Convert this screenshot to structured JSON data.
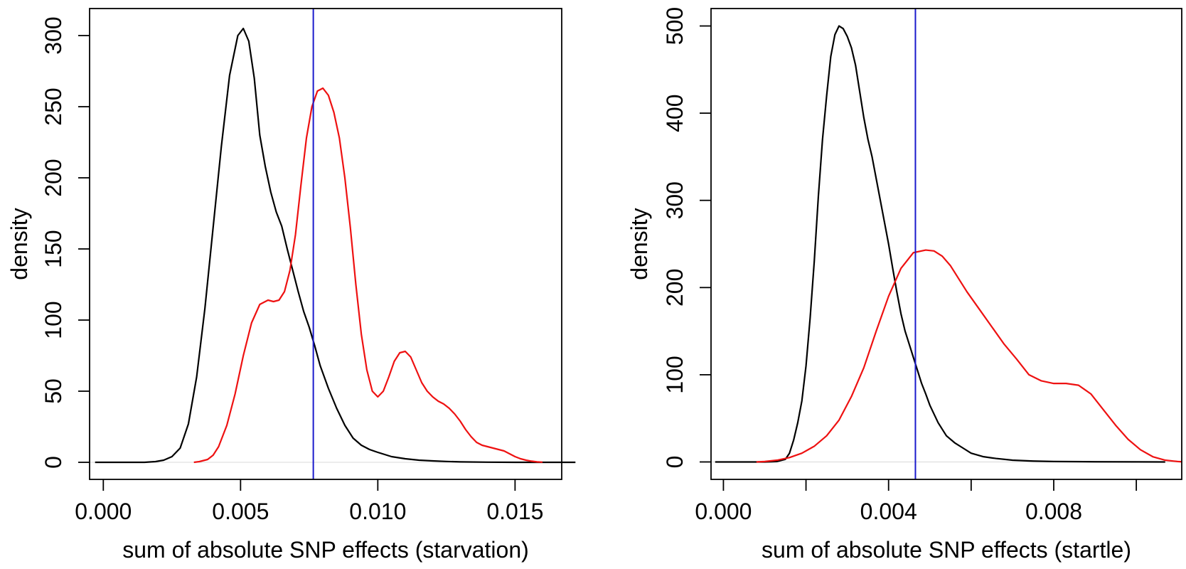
{
  "chart_data": [
    {
      "type": "line",
      "xlabel": "sum of absolute SNP effects (starvation)",
      "ylabel": "density",
      "xlim": [
        -0.0005,
        0.0167
      ],
      "ylim": [
        -12,
        319
      ],
      "xticks": [
        0.0,
        0.005,
        0.01,
        0.015
      ],
      "xtick_labels": [
        "0.000",
        "0.005",
        "0.010",
        "0.015"
      ],
      "yticks": [
        0,
        50,
        100,
        150,
        200,
        250,
        300
      ],
      "ytick_labels": [
        "0",
        "50",
        "100",
        "150",
        "200",
        "250",
        "300"
      ],
      "grid": false,
      "baseline": 0,
      "vline": {
        "x": 0.00765,
        "color": "#1a1acc"
      },
      "series": [
        {
          "color": "#000000",
          "x": [
            -0.0003,
            0.0,
            0.001,
            0.0015,
            0.0019,
            0.0022,
            0.0025,
            0.0028,
            0.0031,
            0.0034,
            0.0037,
            0.004,
            0.0043,
            0.0046,
            0.0049,
            0.0051,
            0.0053,
            0.0055,
            0.0057,
            0.0059,
            0.0061,
            0.0063,
            0.0065,
            0.0067,
            0.0069,
            0.0071,
            0.0073,
            0.0075,
            0.0077,
            0.0079,
            0.0082,
            0.0085,
            0.0088,
            0.0091,
            0.0094,
            0.0097,
            0.01,
            0.0105,
            0.011,
            0.0115,
            0.012,
            0.0125,
            0.013,
            0.014,
            0.015,
            0.016,
            0.0172
          ],
          "y": [
            0,
            0,
            0,
            0,
            0.5,
            1.5,
            4,
            10,
            27,
            60,
            108,
            165,
            222,
            272,
            300,
            305,
            296,
            270,
            230,
            208,
            190,
            176,
            166,
            150,
            135,
            120,
            106,
            95,
            82,
            68,
            52,
            38,
            26,
            17,
            12,
            9,
            7,
            4,
            2.5,
            1.5,
            1,
            0.6,
            0.3,
            0.1,
            0,
            0,
            0
          ]
        },
        {
          "color": "#ee1111",
          "x": [
            0.0033,
            0.0035,
            0.0038,
            0.004,
            0.0042,
            0.0045,
            0.0048,
            0.0051,
            0.0054,
            0.0057,
            0.006,
            0.0062,
            0.0064,
            0.0066,
            0.0068,
            0.007,
            0.0072,
            0.0074,
            0.0076,
            0.0078,
            0.008,
            0.0082,
            0.0084,
            0.0086,
            0.0088,
            0.009,
            0.0092,
            0.0094,
            0.0096,
            0.0098,
            0.01,
            0.0102,
            0.0104,
            0.0106,
            0.0108,
            0.011,
            0.0112,
            0.0114,
            0.0116,
            0.0118,
            0.012,
            0.0122,
            0.0124,
            0.0126,
            0.0128,
            0.013,
            0.0132,
            0.0134,
            0.0136,
            0.0138,
            0.014,
            0.0142,
            0.0144,
            0.0146,
            0.0148,
            0.015,
            0.0152,
            0.0154,
            0.0156,
            0.0158,
            0.016
          ],
          "y": [
            0,
            0.5,
            2,
            5,
            11,
            26,
            48,
            75,
            98,
            111,
            114,
            113,
            114,
            120,
            135,
            160,
            195,
            228,
            250,
            261,
            263,
            258,
            246,
            228,
            200,
            165,
            125,
            90,
            65,
            50,
            46,
            50,
            60,
            71,
            77,
            78,
            74,
            65,
            56,
            50,
            46,
            43,
            41,
            38,
            34,
            29,
            23,
            18,
            14,
            12,
            11,
            10,
            9,
            8,
            6,
            4,
            2.5,
            1.5,
            0.8,
            0.3,
            0.1
          ]
        }
      ]
    },
    {
      "type": "line",
      "xlabel": "sum of absolute SNP effects (startle)",
      "ylabel": "density",
      "xlim": [
        -0.0003,
        0.0111
      ],
      "ylim": [
        -20,
        520
      ],
      "xticks": [
        0.0,
        0.002,
        0.004,
        0.006,
        0.008,
        0.01
      ],
      "xtick_labels": [
        "0.000",
        "",
        "0.004",
        "",
        "0.008",
        ""
      ],
      "yticks": [
        0,
        100,
        200,
        300,
        400,
        500
      ],
      "ytick_labels": [
        "0",
        "100",
        "200",
        "300",
        "400",
        "500"
      ],
      "grid": false,
      "baseline": 0,
      "vline": {
        "x": 0.00465,
        "color": "#1a1acc"
      },
      "series": [
        {
          "color": "#000000",
          "x": [
            -0.0002,
            0.0005,
            0.001,
            0.0013,
            0.0015,
            0.0016,
            0.0017,
            0.0018,
            0.0019,
            0.002,
            0.0021,
            0.0022,
            0.0023,
            0.0024,
            0.0025,
            0.0026,
            0.0027,
            0.0028,
            0.0029,
            0.003,
            0.0031,
            0.0032,
            0.0033,
            0.0034,
            0.0035,
            0.0036,
            0.0037,
            0.0038,
            0.0039,
            0.004,
            0.0041,
            0.0042,
            0.0043,
            0.0044,
            0.0045,
            0.0046,
            0.0047,
            0.0048,
            0.0049,
            0.005,
            0.0052,
            0.0054,
            0.0056,
            0.0058,
            0.006,
            0.0063,
            0.0066,
            0.007,
            0.0075,
            0.008,
            0.009,
            0.01,
            0.0107
          ],
          "y": [
            0,
            0,
            0,
            0.5,
            3,
            10,
            25,
            45,
            70,
            110,
            165,
            230,
            305,
            370,
            420,
            465,
            490,
            500,
            497,
            488,
            475,
            455,
            425,
            395,
            370,
            350,
            325,
            300,
            275,
            250,
            222,
            195,
            170,
            150,
            135,
            120,
            105,
            90,
            78,
            65,
            45,
            30,
            22,
            16,
            10,
            6,
            4,
            2,
            1,
            0.5,
            0.2,
            0.1,
            0
          ]
        },
        {
          "color": "#ee1111",
          "x": [
            0.0008,
            0.001,
            0.0013,
            0.0016,
            0.0019,
            0.0022,
            0.0025,
            0.0028,
            0.0031,
            0.0034,
            0.0037,
            0.004,
            0.0043,
            0.0046,
            0.0049,
            0.0051,
            0.0053,
            0.0055,
            0.0057,
            0.0059,
            0.0062,
            0.0065,
            0.0068,
            0.0071,
            0.0074,
            0.0077,
            0.008,
            0.0083,
            0.0086,
            0.0089,
            0.0092,
            0.0095,
            0.0098,
            0.0101,
            0.0104,
            0.0107,
            0.011,
            0.0111
          ],
          "y": [
            0,
            0.5,
            2,
            5,
            10,
            18,
            30,
            48,
            75,
            108,
            150,
            190,
            222,
            240,
            243,
            242,
            236,
            225,
            210,
            195,
            175,
            155,
            135,
            118,
            100,
            93,
            90,
            90,
            88,
            78,
            60,
            42,
            26,
            14,
            6,
            2,
            0.5,
            0.2
          ]
        }
      ]
    }
  ]
}
